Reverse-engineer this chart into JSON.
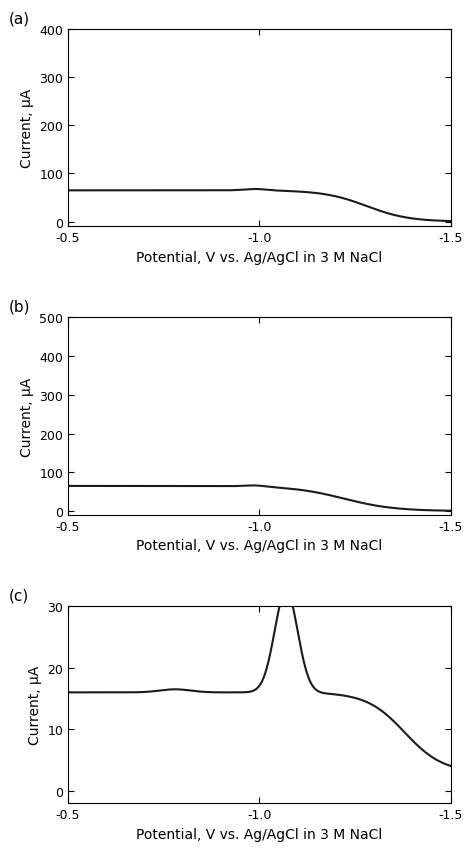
{
  "xlabel": "Potential, V vs. Ag/AgCl in 3 M NaCl",
  "ylabel": "Current, μA",
  "background_color": "#ffffff",
  "line_color": "#1a1a1a",
  "line_width": 1.5,
  "panels": [
    "(a)",
    "(b)",
    "(c)"
  ],
  "xlim": [
    -0.5,
    -1.5
  ],
  "panel_a": {
    "ylim": [
      -10,
      400
    ],
    "yticks": [
      0,
      100,
      200,
      300,
      400
    ],
    "xticks": [
      -0.5,
      -1.0,
      -1.5
    ]
  },
  "panel_b": {
    "ylim": [
      -10,
      500
    ],
    "yticks": [
      0,
      100,
      200,
      300,
      400,
      500
    ],
    "xticks": [
      -0.5,
      -1.0,
      -1.5
    ]
  },
  "panel_c": {
    "ylim": [
      -2,
      30
    ],
    "yticks": [
      0,
      10,
      20,
      30
    ],
    "xticks": [
      -0.5,
      -1.0,
      -1.5
    ]
  }
}
